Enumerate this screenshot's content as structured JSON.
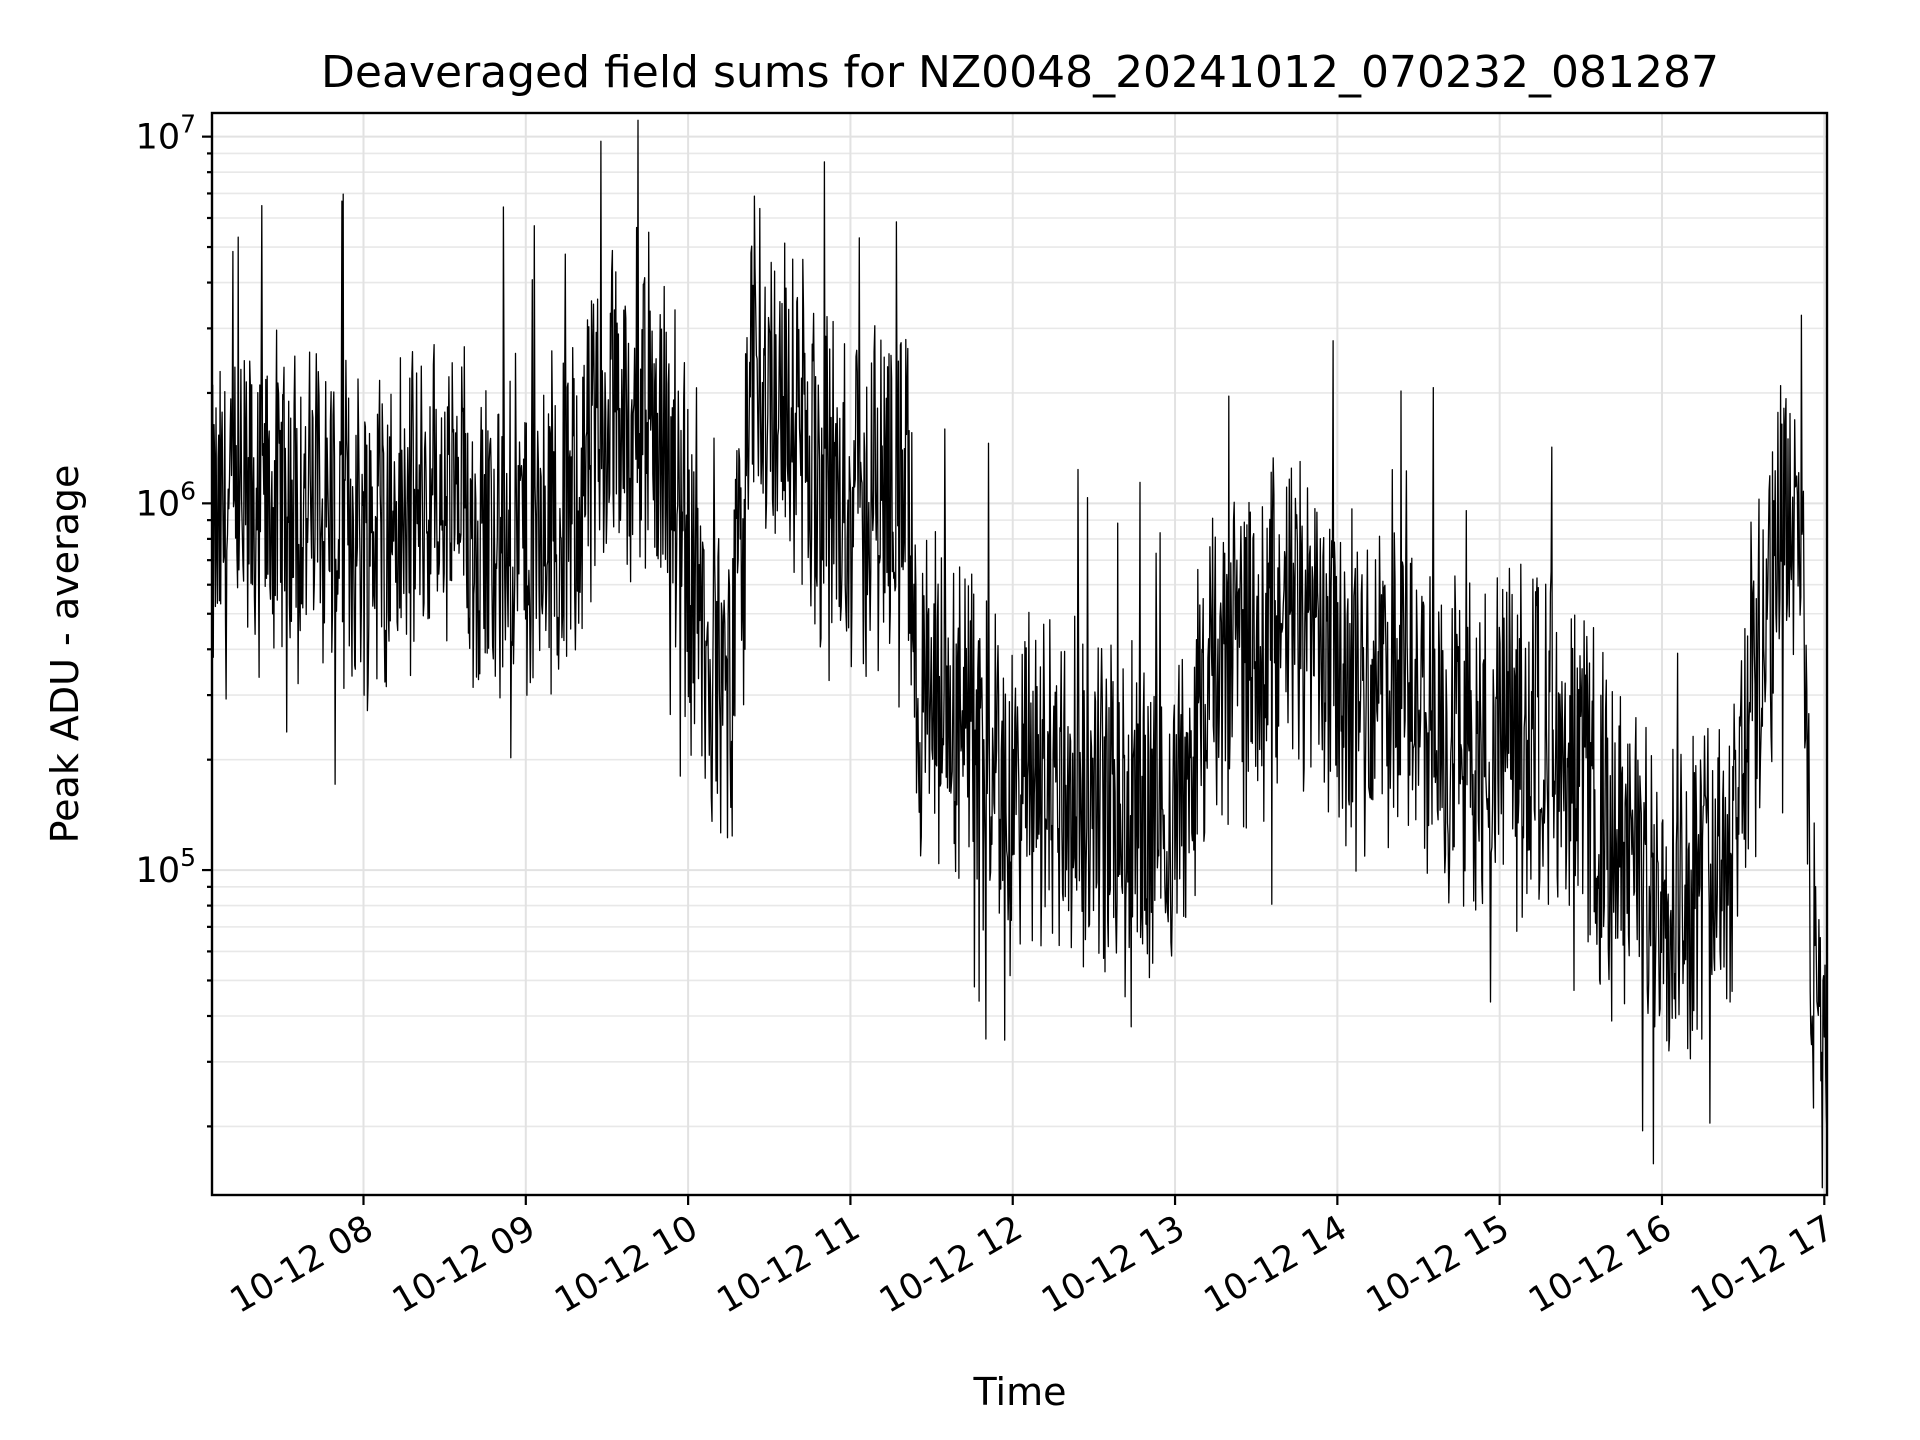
{
  "chart_data": {
    "type": "line",
    "title": "Deaveraged field sums for NZ0048_20241012_070232_081287",
    "xlabel": "Time",
    "ylabel": "Peak ADU - average",
    "xscale": "time",
    "yscale": "log",
    "xlim": [
      "2024-10-12 07:04",
      "2024-10-12 17:01"
    ],
    "ylim": [
      13000,
      11600000
    ],
    "grid": true,
    "legend": "none",
    "line_color": "#000000",
    "x_tick_labels": [
      "10-12 08",
      "10-12 09",
      "10-12 10",
      "10-12 11",
      "10-12 12",
      "10-12 13",
      "10-12 14",
      "10-12 15",
      "10-12 16",
      "10-12 17"
    ],
    "y_tick_labels": [
      {
        "base": "10",
        "exp": "5",
        "value": 100000
      },
      {
        "base": "10",
        "exp": "6",
        "value": 1000000
      },
      {
        "base": "10",
        "exp": "7",
        "value": 10000000
      }
    ],
    "series": [
      {
        "x": [
          "2024-10-12 07:04",
          "2024-10-12 07:15",
          "2024-10-12 07:30",
          "2024-10-12 07:45",
          "2024-10-12 08:00",
          "2024-10-12 08:15",
          "2024-10-12 08:30",
          "2024-10-12 08:45",
          "2024-10-12 09:00",
          "2024-10-12 09:15",
          "2024-10-12 09:30",
          "2024-10-12 09:45",
          "2024-10-12 09:55",
          "2024-10-12 10:05",
          "2024-10-12 10:15",
          "2024-10-12 10:25",
          "2024-10-12 10:35",
          "2024-10-12 10:50",
          "2024-10-12 11:05",
          "2024-10-12 11:20",
          "2024-10-12 11:25",
          "2024-10-12 11:35",
          "2024-10-12 11:50",
          "2024-10-12 12:05",
          "2024-10-12 12:20",
          "2024-10-12 12:35",
          "2024-10-12 12:50",
          "2024-10-12 13:00",
          "2024-10-12 13:10",
          "2024-10-12 13:25",
          "2024-10-12 13:40",
          "2024-10-12 13:55",
          "2024-10-12 14:10",
          "2024-10-12 14:25",
          "2024-10-12 14:40",
          "2024-10-12 14:55",
          "2024-10-12 15:10",
          "2024-10-12 15:25",
          "2024-10-12 15:40",
          "2024-10-12 15:55",
          "2024-10-12 16:10",
          "2024-10-12 16:25",
          "2024-10-12 16:35",
          "2024-10-12 16:45",
          "2024-10-12 16:52",
          "2024-10-12 16:55",
          "2024-10-12 17:00"
        ],
        "y": [
          800000,
          900000,
          1000000,
          950000,
          850000,
          900000,
          1000000,
          850000,
          800000,
          900000,
          1600000,
          2000000,
          1200000,
          400000,
          300000,
          2500000,
          2000000,
          1200000,
          900000,
          1400000,
          300000,
          250000,
          200000,
          180000,
          170000,
          150000,
          150000,
          140000,
          300000,
          400000,
          500000,
          400000,
          300000,
          300000,
          250000,
          200000,
          250000,
          250000,
          120000,
          100000,
          90000,
          120000,
          400000,
          800000,
          1200000,
          70000,
          25000
        ]
      }
    ]
  }
}
